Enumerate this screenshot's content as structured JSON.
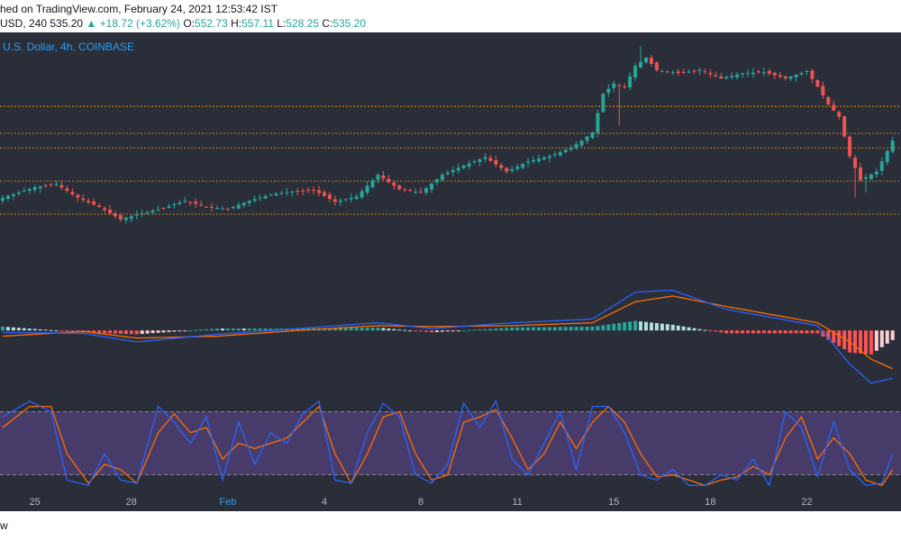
{
  "header": {
    "published": "hed on TradingView.com, February 24, 2021 12:53:42 IST",
    "symbol": "USD, 240",
    "last": "535.20",
    "change": "▲ +18.72 (+3.62%)",
    "o_label": "O:",
    "o": "552.73",
    "h_label": "H:",
    "h": "557.11",
    "l_label": "L:",
    "l": "528.25",
    "c_label": "C:",
    "c": "535.20"
  },
  "symbol_label": "U.S. Dollar, 4h, COINBASE",
  "footer": {
    "text": "w"
  },
  "colors": {
    "up": "#26a69a",
    "down": "#ef5350",
    "macd_line": "#2962ff",
    "signal_line": "#ff6d00",
    "stoch_k": "#2962ff",
    "stoch_d": "#ff6d00",
    "band": "#7e57c2",
    "level": "#ff9800"
  },
  "chart_data": [
    {
      "type": "candlestick",
      "title": "U.S. Dollar, 4h, COINBASE",
      "x_ticks": [
        "25",
        "28",
        "Feb",
        "4",
        "8",
        "11",
        "15",
        "18",
        "22"
      ],
      "x_tick_indices": [
        6,
        24,
        42,
        60,
        78,
        96,
        114,
        132,
        150
      ],
      "horizontal_levels": [
        593,
        567,
        553,
        521,
        489
      ],
      "price_range": [
        430,
        660
      ],
      "anchors": [
        {
          "i": 0,
          "p": 505
        },
        {
          "i": 6,
          "p": 515
        },
        {
          "i": 10,
          "p": 518
        },
        {
          "i": 14,
          "p": 505
        },
        {
          "i": 18,
          "p": 496
        },
        {
          "i": 22,
          "p": 484
        },
        {
          "i": 26,
          "p": 490
        },
        {
          "i": 30,
          "p": 495
        },
        {
          "i": 34,
          "p": 502
        },
        {
          "i": 38,
          "p": 496
        },
        {
          "i": 42,
          "p": 494
        },
        {
          "i": 46,
          "p": 502
        },
        {
          "i": 50,
          "p": 508
        },
        {
          "i": 54,
          "p": 511
        },
        {
          "i": 58,
          "p": 512
        },
        {
          "i": 62,
          "p": 501
        },
        {
          "i": 66,
          "p": 506
        },
        {
          "i": 70,
          "p": 527
        },
        {
          "i": 74,
          "p": 513
        },
        {
          "i": 78,
          "p": 510
        },
        {
          "i": 82,
          "p": 527
        },
        {
          "i": 86,
          "p": 536
        },
        {
          "i": 90,
          "p": 544
        },
        {
          "i": 94,
          "p": 530
        },
        {
          "i": 98,
          "p": 540
        },
        {
          "i": 102,
          "p": 545
        },
        {
          "i": 106,
          "p": 553
        },
        {
          "i": 108,
          "p": 560
        },
        {
          "i": 110,
          "p": 568
        },
        {
          "i": 112,
          "p": 605
        },
        {
          "i": 114,
          "p": 615
        },
        {
          "i": 116,
          "p": 612
        },
        {
          "i": 118,
          "p": 632
        },
        {
          "i": 120,
          "p": 640
        },
        {
          "i": 122,
          "p": 628
        },
        {
          "i": 126,
          "p": 625
        },
        {
          "i": 130,
          "p": 628
        },
        {
          "i": 134,
          "p": 620
        },
        {
          "i": 138,
          "p": 625
        },
        {
          "i": 142,
          "p": 626
        },
        {
          "i": 146,
          "p": 620
        },
        {
          "i": 150,
          "p": 627
        },
        {
          "i": 152,
          "p": 612
        },
        {
          "i": 154,
          "p": 595
        },
        {
          "i": 156,
          "p": 583
        },
        {
          "i": 158,
          "p": 545
        },
        {
          "i": 160,
          "p": 522
        },
        {
          "i": 163,
          "p": 530
        },
        {
          "i": 166,
          "p": 560
        }
      ],
      "wicks": [
        {
          "i": 115,
          "low": 575
        },
        {
          "i": 119,
          "high": 651
        },
        {
          "i": 159,
          "low": 505
        },
        {
          "i": 161,
          "low": 510
        }
      ]
    },
    {
      "type": "macd",
      "series": [
        {
          "name": "MACD",
          "anchors": [
            {
              "i": 0,
              "v": -2
            },
            {
              "i": 15,
              "v": -3
            },
            {
              "i": 25,
              "v": -12
            },
            {
              "i": 40,
              "v": -4
            },
            {
              "i": 55,
              "v": 2
            },
            {
              "i": 70,
              "v": 8
            },
            {
              "i": 80,
              "v": 2
            },
            {
              "i": 95,
              "v": 8
            },
            {
              "i": 110,
              "v": 12
            },
            {
              "i": 118,
              "v": 40
            },
            {
              "i": 125,
              "v": 42
            },
            {
              "i": 135,
              "v": 22
            },
            {
              "i": 145,
              "v": 12
            },
            {
              "i": 152,
              "v": 5
            },
            {
              "i": 158,
              "v": -35
            },
            {
              "i": 162,
              "v": -55
            },
            {
              "i": 166,
              "v": -50
            }
          ]
        },
        {
          "name": "Signal",
          "anchors": [
            {
              "i": 0,
              "v": -6
            },
            {
              "i": 15,
              "v": -1
            },
            {
              "i": 25,
              "v": -8
            },
            {
              "i": 40,
              "v": -6
            },
            {
              "i": 55,
              "v": 0
            },
            {
              "i": 70,
              "v": 5
            },
            {
              "i": 80,
              "v": 4
            },
            {
              "i": 95,
              "v": 5
            },
            {
              "i": 110,
              "v": 8
            },
            {
              "i": 118,
              "v": 30
            },
            {
              "i": 125,
              "v": 36
            },
            {
              "i": 135,
              "v": 25
            },
            {
              "i": 145,
              "v": 15
            },
            {
              "i": 152,
              "v": 8
            },
            {
              "i": 158,
              "v": -12
            },
            {
              "i": 162,
              "v": -30
            },
            {
              "i": 166,
              "v": -40
            }
          ]
        }
      ],
      "range": [
        -60,
        50
      ]
    },
    {
      "type": "stochastic_rsi",
      "band": [
        20,
        80
      ],
      "range": [
        0,
        100
      ],
      "series": [
        {
          "name": "K",
          "anchors": [
            {
              "i": 0,
              "v": 75
            },
            {
              "i": 5,
              "v": 90
            },
            {
              "i": 9,
              "v": 80
            },
            {
              "i": 12,
              "v": 15
            },
            {
              "i": 16,
              "v": 10
            },
            {
              "i": 19,
              "v": 40
            },
            {
              "i": 22,
              "v": 15
            },
            {
              "i": 25,
              "v": 12
            },
            {
              "i": 29,
              "v": 85
            },
            {
              "i": 32,
              "v": 70
            },
            {
              "i": 35,
              "v": 50
            },
            {
              "i": 38,
              "v": 75
            },
            {
              "i": 41,
              "v": 15
            },
            {
              "i": 44,
              "v": 70
            },
            {
              "i": 47,
              "v": 30
            },
            {
              "i": 50,
              "v": 60
            },
            {
              "i": 53,
              "v": 50
            },
            {
              "i": 56,
              "v": 78
            },
            {
              "i": 59,
              "v": 90
            },
            {
              "i": 62,
              "v": 15
            },
            {
              "i": 65,
              "v": 12
            },
            {
              "i": 68,
              "v": 60
            },
            {
              "i": 71,
              "v": 88
            },
            {
              "i": 74,
              "v": 75
            },
            {
              "i": 77,
              "v": 20
            },
            {
              "i": 80,
              "v": 12
            },
            {
              "i": 83,
              "v": 30
            },
            {
              "i": 86,
              "v": 88
            },
            {
              "i": 89,
              "v": 65
            },
            {
              "i": 92,
              "v": 90
            },
            {
              "i": 95,
              "v": 35
            },
            {
              "i": 98,
              "v": 20
            },
            {
              "i": 101,
              "v": 50
            },
            {
              "i": 104,
              "v": 80
            },
            {
              "i": 107,
              "v": 25
            },
            {
              "i": 110,
              "v": 85
            },
            {
              "i": 113,
              "v": 85
            },
            {
              "i": 116,
              "v": 60
            },
            {
              "i": 119,
              "v": 20
            },
            {
              "i": 122,
              "v": 15
            },
            {
              "i": 125,
              "v": 25
            },
            {
              "i": 128,
              "v": 10
            },
            {
              "i": 131,
              "v": 10
            },
            {
              "i": 134,
              "v": 20
            },
            {
              "i": 137,
              "v": 15
            },
            {
              "i": 140,
              "v": 35
            },
            {
              "i": 143,
              "v": 10
            },
            {
              "i": 146,
              "v": 80
            },
            {
              "i": 149,
              "v": 65
            },
            {
              "i": 152,
              "v": 18
            },
            {
              "i": 155,
              "v": 70
            },
            {
              "i": 158,
              "v": 25
            },
            {
              "i": 161,
              "v": 10
            },
            {
              "i": 164,
              "v": 12
            },
            {
              "i": 166,
              "v": 40
            }
          ]
        },
        {
          "name": "D",
          "anchors": [
            {
              "i": 0,
              "v": 65
            },
            {
              "i": 5,
              "v": 85
            },
            {
              "i": 9,
              "v": 85
            },
            {
              "i": 12,
              "v": 40
            },
            {
              "i": 16,
              "v": 12
            },
            {
              "i": 19,
              "v": 30
            },
            {
              "i": 22,
              "v": 25
            },
            {
              "i": 25,
              "v": 12
            },
            {
              "i": 29,
              "v": 60
            },
            {
              "i": 32,
              "v": 78
            },
            {
              "i": 35,
              "v": 60
            },
            {
              "i": 38,
              "v": 65
            },
            {
              "i": 41,
              "v": 35
            },
            {
              "i": 44,
              "v": 50
            },
            {
              "i": 47,
              "v": 45
            },
            {
              "i": 50,
              "v": 50
            },
            {
              "i": 53,
              "v": 55
            },
            {
              "i": 56,
              "v": 70
            },
            {
              "i": 59,
              "v": 85
            },
            {
              "i": 62,
              "v": 40
            },
            {
              "i": 65,
              "v": 12
            },
            {
              "i": 68,
              "v": 40
            },
            {
              "i": 71,
              "v": 75
            },
            {
              "i": 74,
              "v": 80
            },
            {
              "i": 77,
              "v": 40
            },
            {
              "i": 80,
              "v": 15
            },
            {
              "i": 83,
              "v": 20
            },
            {
              "i": 86,
              "v": 70
            },
            {
              "i": 89,
              "v": 75
            },
            {
              "i": 92,
              "v": 82
            },
            {
              "i": 95,
              "v": 55
            },
            {
              "i": 98,
              "v": 25
            },
            {
              "i": 101,
              "v": 40
            },
            {
              "i": 104,
              "v": 70
            },
            {
              "i": 107,
              "v": 45
            },
            {
              "i": 110,
              "v": 70
            },
            {
              "i": 113,
              "v": 85
            },
            {
              "i": 116,
              "v": 70
            },
            {
              "i": 119,
              "v": 40
            },
            {
              "i": 122,
              "v": 18
            },
            {
              "i": 125,
              "v": 20
            },
            {
              "i": 128,
              "v": 15
            },
            {
              "i": 131,
              "v": 10
            },
            {
              "i": 134,
              "v": 15
            },
            {
              "i": 137,
              "v": 18
            },
            {
              "i": 140,
              "v": 28
            },
            {
              "i": 143,
              "v": 20
            },
            {
              "i": 146,
              "v": 55
            },
            {
              "i": 149,
              "v": 75
            },
            {
              "i": 152,
              "v": 35
            },
            {
              "i": 155,
              "v": 55
            },
            {
              "i": 158,
              "v": 40
            },
            {
              "i": 161,
              "v": 15
            },
            {
              "i": 164,
              "v": 10
            },
            {
              "i": 166,
              "v": 25
            }
          ]
        }
      ]
    }
  ]
}
